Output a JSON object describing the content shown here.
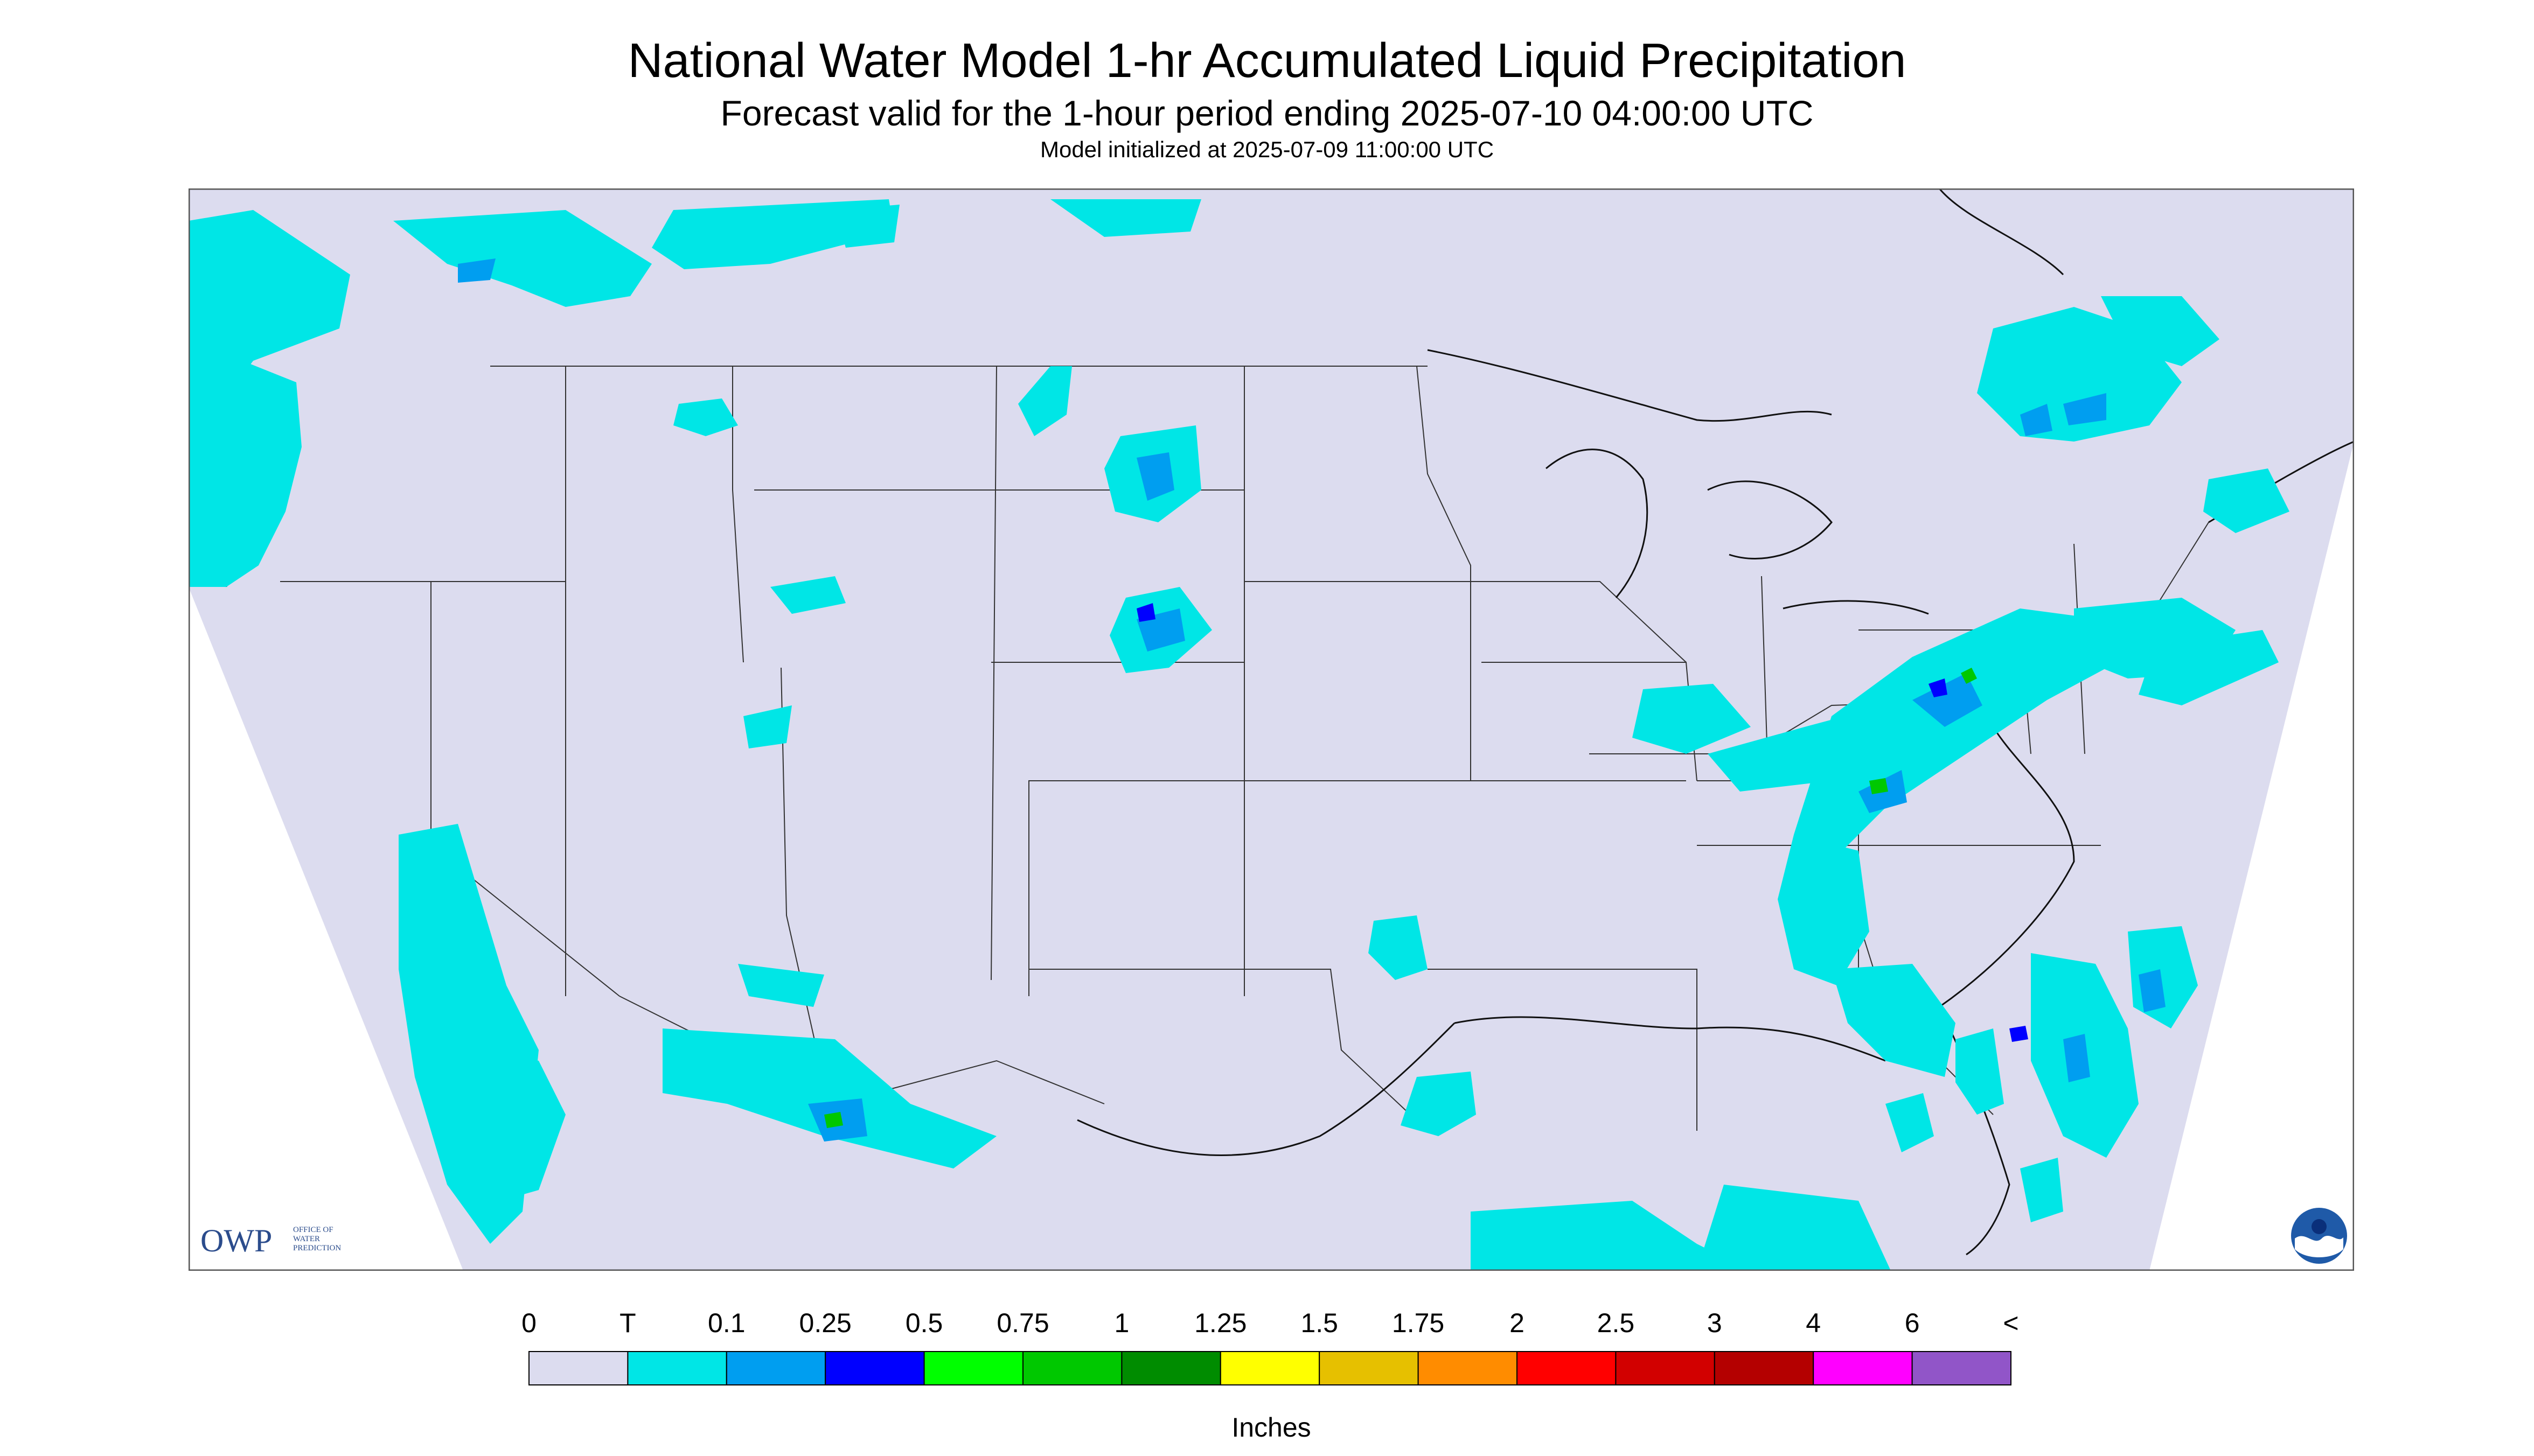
{
  "header": {
    "title": "National Water Model 1-hr Accumulated Liquid Precipitation",
    "subtitle": "Forecast valid for the 1-hour period ending 2025-07-10 04:00:00 UTC",
    "init": "Model initialized at 2025-07-09 11:00:00 UTC"
  },
  "colors": {
    "background": "#dcdcef",
    "trace": "#00e6e6",
    "light_blue": "#009ef0",
    "blue": "#0000ff",
    "green": "#00c800"
  },
  "legend": {
    "unit_label": "Inches",
    "labels": [
      "0",
      "T",
      "0.1",
      "0.25",
      "0.5",
      "0.75",
      "1",
      "1.25",
      "1.5",
      "1.75",
      "2",
      "2.5",
      "3",
      "4",
      "6",
      "<"
    ],
    "colors": [
      "#dcdcef",
      "#00e6e6",
      "#009ef0",
      "#0000ff",
      "#00ff00",
      "#00c800",
      "#008c00",
      "#ffff00",
      "#e6c000",
      "#ff8c00",
      "#ff0000",
      "#d20000",
      "#b40000",
      "#ff00ff",
      "#9155c8"
    ]
  },
  "logos": {
    "owp_text": "OWP",
    "owp_subtext": "OFFICE OF\nWATER\nPREDICTION",
    "noaa_icon": "noaa-logo"
  }
}
